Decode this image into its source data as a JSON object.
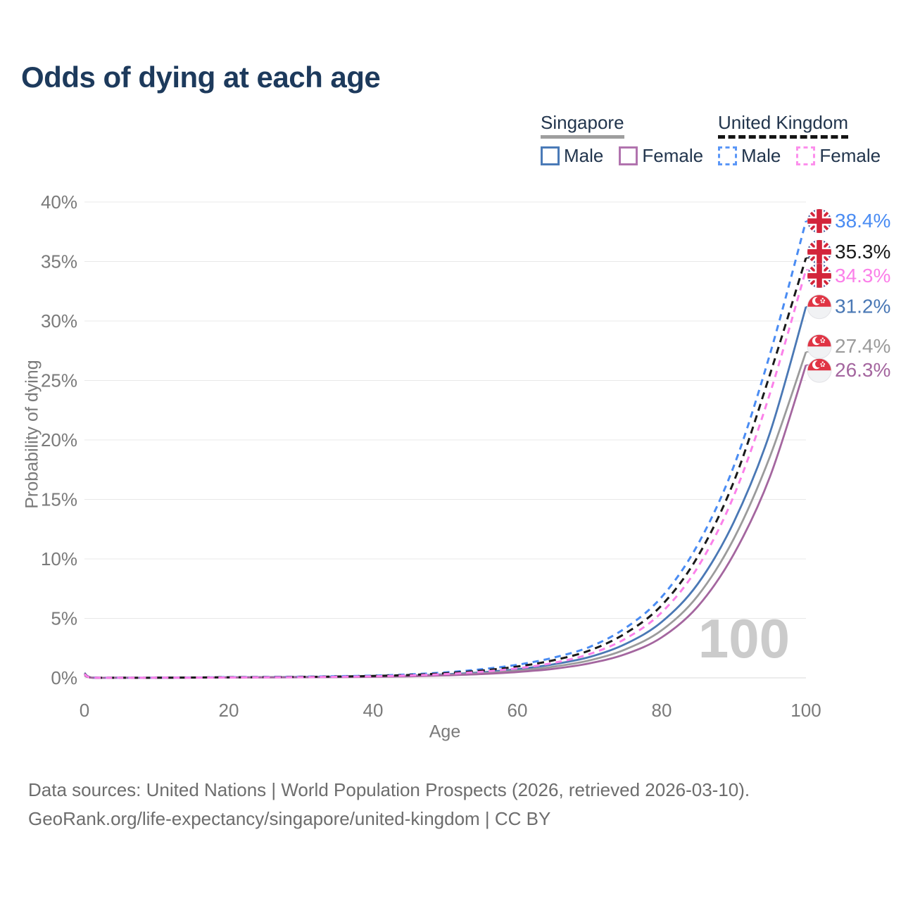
{
  "title": "Odds of dying at each age",
  "legend": {
    "groups": [
      {
        "country": "Singapore",
        "line_style": "solid",
        "line_color": "#9e9e9e",
        "items": [
          {
            "label": "Male",
            "color": "#4a7ab7",
            "dashed": false
          },
          {
            "label": "Female",
            "color": "#b173ae",
            "dashed": false
          }
        ]
      },
      {
        "country": "United Kingdom",
        "line_style": "dashed",
        "line_color": "#141414",
        "items": [
          {
            "label": "Male",
            "color": "#5b97f7",
            "dashed": true
          },
          {
            "label": "Female",
            "color": "#fc90ec",
            "dashed": true
          }
        ]
      }
    ]
  },
  "watermark": "100",
  "footer": {
    "line1": "Data sources: United Nations | World Population Prospects (2026, retrieved 2026-03-10).",
    "line2": "GeoRank.org/life-expectancy/singapore/united-kingdom | CC BY"
  },
  "colors": {
    "grid": "#e8e8e8",
    "zero_line": "#d8d8d8",
    "axis_text": "#7a7a7a",
    "title": "#1d3a5c",
    "watermark": "#cbcbcb",
    "footer": "#6d6d6d"
  },
  "chart_data": {
    "type": "line",
    "title": "Odds of dying at each age",
    "xlabel": "Age",
    "ylabel": "Probability of dying",
    "xlim": [
      0,
      100
    ],
    "ylim": [
      0,
      40
    ],
    "grid": true,
    "legend_position": "top-right",
    "x_ticks": [
      0,
      20,
      40,
      60,
      80,
      100
    ],
    "x_tick_labels": [
      "0",
      "20",
      "40",
      "60",
      "80",
      "100"
    ],
    "y_ticks": [
      0,
      5,
      10,
      15,
      20,
      25,
      30,
      35,
      40
    ],
    "y_tick_labels": [
      "0%",
      "5%",
      "10%",
      "15%",
      "20%",
      "25%",
      "30%",
      "35%",
      "40%"
    ],
    "x": [
      0,
      1,
      5,
      10,
      15,
      20,
      25,
      30,
      35,
      40,
      45,
      50,
      55,
      60,
      65,
      70,
      75,
      80,
      85,
      90,
      95,
      100
    ],
    "series": [
      {
        "name": "United Kingdom Male",
        "flag": "uk",
        "color": "#4a8cf3",
        "dash": "9 7",
        "end_value": 38.4,
        "end_label": "38.4%",
        "values": [
          0.4,
          0.03,
          0.01,
          0.01,
          0.03,
          0.06,
          0.08,
          0.1,
          0.14,
          0.19,
          0.29,
          0.46,
          0.72,
          1.1,
          1.7,
          2.6,
          4.2,
          6.8,
          11.2,
          17.8,
          27.2,
          38.4
        ]
      },
      {
        "name": "United Kingdom Both sexes",
        "flag": "uk",
        "color": "#1a1a1a",
        "dash": "10 7",
        "end_value": 35.3,
        "end_label": "35.3%",
        "values": [
          0.37,
          0.03,
          0.01,
          0.01,
          0.03,
          0.05,
          0.06,
          0.08,
          0.11,
          0.16,
          0.24,
          0.39,
          0.61,
          0.95,
          1.48,
          2.3,
          3.75,
          6.1,
          10.2,
          16.5,
          25.5,
          35.3
        ]
      },
      {
        "name": "United Kingdom Female",
        "flag": "uk",
        "color": "#fb80e9",
        "dash": "9 7",
        "end_value": 34.3,
        "end_label": "34.3%",
        "values": [
          0.33,
          0.02,
          0.01,
          0.01,
          0.02,
          0.03,
          0.05,
          0.06,
          0.09,
          0.13,
          0.2,
          0.32,
          0.51,
          0.8,
          1.26,
          2.0,
          3.3,
          5.5,
          9.3,
          15.3,
          23.9,
          34.3
        ]
      },
      {
        "name": "Singapore Male",
        "flag": "sg",
        "color": "#4a78b5",
        "dash": null,
        "end_value": 31.2,
        "end_label": "31.2%",
        "values": [
          0.25,
          0.02,
          0.01,
          0.01,
          0.03,
          0.05,
          0.06,
          0.08,
          0.1,
          0.13,
          0.19,
          0.3,
          0.47,
          0.73,
          1.14,
          1.75,
          2.85,
          4.7,
          7.9,
          13.1,
          20.6,
          31.2
        ]
      },
      {
        "name": "Singapore Both sexes",
        "flag": "sg",
        "color": "#9b9b9b",
        "dash": null,
        "end_value": 27.4,
        "end_label": "27.4%",
        "values": [
          0.23,
          0.02,
          0.01,
          0.01,
          0.02,
          0.04,
          0.05,
          0.06,
          0.08,
          0.11,
          0.16,
          0.25,
          0.39,
          0.6,
          0.94,
          1.47,
          2.4,
          4.0,
          6.9,
          11.7,
          18.6,
          27.4
        ]
      },
      {
        "name": "Singapore Female",
        "flag": "sg",
        "color": "#a4669f",
        "dash": null,
        "end_value": 26.3,
        "end_label": "26.3%",
        "values": [
          0.21,
          0.02,
          0.01,
          0.01,
          0.02,
          0.03,
          0.04,
          0.05,
          0.06,
          0.09,
          0.13,
          0.21,
          0.32,
          0.49,
          0.76,
          1.22,
          2.0,
          3.4,
          6.0,
          10.4,
          16.9,
          26.3
        ]
      }
    ]
  }
}
